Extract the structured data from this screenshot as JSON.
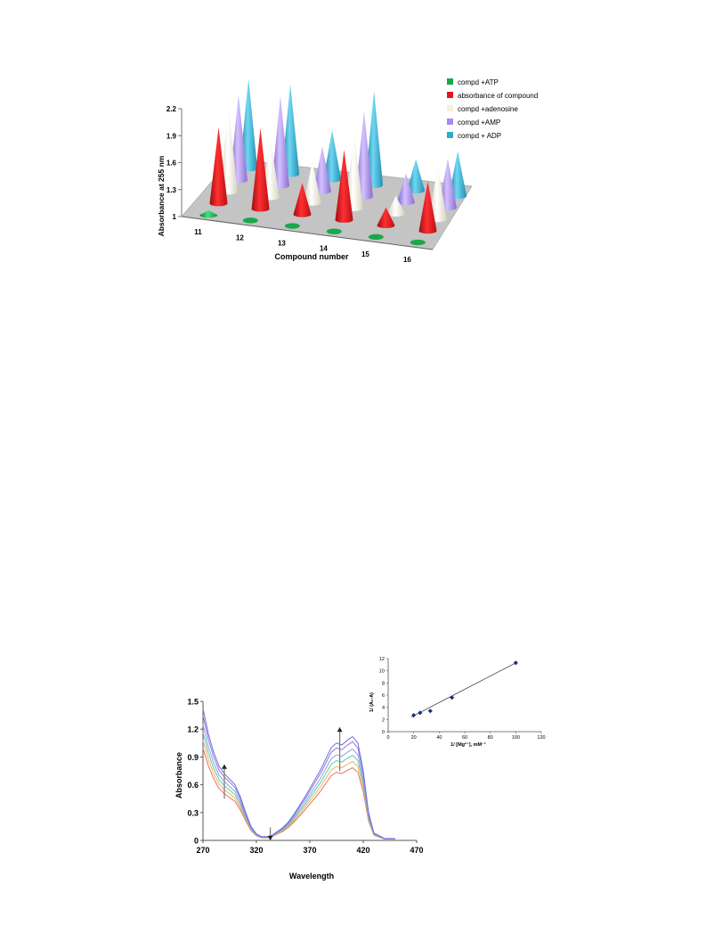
{
  "colors": {
    "atp": "#1aa84a",
    "compound": "#e4161b",
    "adenosine": "#f4f1e3",
    "amp": "#ab8be8",
    "adp": "#31a9cf",
    "floor": "#c4c4c4",
    "spectrum_series": [
      "#e8725c",
      "#f0b060",
      "#5fc9a8",
      "#7fa8e6",
      "#9a6fd6",
      "#6a72e0"
    ],
    "inset_point": "#16307a"
  },
  "chart_data": [
    {
      "type": "bar",
      "style": "3d-cones",
      "title": "",
      "xlabel": "Compound number",
      "ylabel": "Absorbance at 255 nm",
      "ylim": [
        1,
        2.2
      ],
      "yticks": [
        "2.2",
        "1.9",
        "1.6",
        "1.3",
        "1"
      ],
      "categories": [
        "11",
        "12",
        "13",
        "14",
        "15",
        "16"
      ],
      "series": [
        {
          "name": "compd +ATP",
          "color_key": "atp",
          "values": [
            1.05,
            1.0,
            1.0,
            1.0,
            1.0,
            1.0
          ]
        },
        {
          "name": "absorbance of compound",
          "color_key": "compound",
          "values": [
            1.85,
            1.9,
            1.35,
            1.78,
            1.2,
            1.55
          ]
        },
        {
          "name": "compd +adenosine",
          "color_key": "adenosine",
          "values": [
            1.95,
            1.65,
            1.45,
            1.85,
            1.2,
            1.6
          ]
        },
        {
          "name": "compd +AMP",
          "color_key": "amp",
          "values": [
            1.95,
            2.0,
            1.5,
            1.95,
            1.32,
            1.55
          ]
        },
        {
          "name": "compd + ADP",
          "color_key": "adp",
          "values": [
            2.0,
            2.0,
            1.55,
            2.05,
            1.35,
            1.5
          ]
        }
      ],
      "legend_position": "top-right"
    },
    {
      "type": "line",
      "title": "",
      "xlabel": "Wavelength",
      "ylabel": "Absorbance",
      "xlim": [
        270,
        470
      ],
      "ylim": [
        0,
        1.5
      ],
      "xticks": [
        "270",
        "320",
        "370",
        "420",
        "470"
      ],
      "yticks": [
        "1.5",
        "1.2",
        "0.9",
        "0.6",
        "0.3",
        "0"
      ],
      "x": [
        270,
        275,
        280,
        285,
        290,
        295,
        300,
        305,
        310,
        315,
        320,
        325,
        330,
        335,
        340,
        345,
        350,
        355,
        360,
        365,
        370,
        375,
        380,
        385,
        390,
        395,
        400,
        405,
        410,
        415,
        420,
        425,
        430,
        440,
        450
      ],
      "base_profile": [
        1.42,
        1.15,
        0.95,
        0.8,
        0.72,
        0.66,
        0.6,
        0.47,
        0.3,
        0.15,
        0.07,
        0.04,
        0.04,
        0.06,
        0.1,
        0.14,
        0.2,
        0.28,
        0.37,
        0.46,
        0.56,
        0.66,
        0.76,
        0.88,
        1.0,
        1.05,
        1.03,
        1.08,
        1.12,
        1.05,
        0.75,
        0.3,
        0.08,
        0.02,
        0.02
      ],
      "series": [
        {
          "scale": 0.7
        },
        {
          "scale": 0.76
        },
        {
          "scale": 0.82
        },
        {
          "scale": 0.88
        },
        {
          "scale": 0.95
        },
        {
          "scale": 1.0
        }
      ],
      "arrows": [
        {
          "x": 290,
          "from": 0.45,
          "to": 0.82,
          "direction": "up"
        },
        {
          "x": 333,
          "from": 0.14,
          "to": 0.0,
          "direction": "down"
        },
        {
          "x": 398,
          "from": 0.75,
          "to": 1.22,
          "direction": "up"
        }
      ],
      "legend_position": "none"
    },
    {
      "type": "scatter",
      "title": "",
      "xlabel": "1/ [Mg²⁺], mM⁻¹",
      "ylabel": "1/ (A₀-A)",
      "xlim": [
        0,
        120
      ],
      "ylim": [
        0,
        12
      ],
      "xticks": [
        "0",
        "20",
        "40",
        "60",
        "80",
        "100",
        "120"
      ],
      "yticks": [
        "12",
        "10",
        "8",
        "6",
        "4",
        "2",
        "0"
      ],
      "points": [
        {
          "x": 20,
          "y": 2.7
        },
        {
          "x": 25,
          "y": 3.1
        },
        {
          "x": 33,
          "y": 3.4
        },
        {
          "x": 50,
          "y": 5.6
        },
        {
          "x": 100,
          "y": 11.3
        }
      ],
      "fit_line": {
        "x0": 18,
        "y0": 2.4,
        "x1": 100,
        "y1": 11.3
      },
      "legend_position": "none"
    }
  ]
}
